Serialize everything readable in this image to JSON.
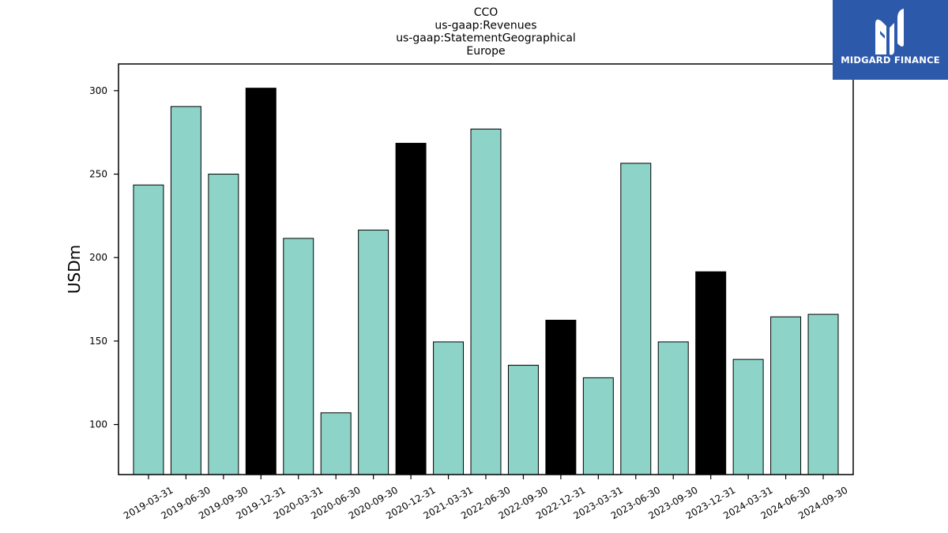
{
  "chart_data": {
    "type": "bar",
    "title_lines": [
      "CCO",
      "us-gaap:Revenues",
      "us-gaap:StatementGeographical",
      "Europe"
    ],
    "ylabel": "USDm",
    "xlabel": "",
    "ylim": [
      70,
      316
    ],
    "yticks": [
      100,
      150,
      200,
      250,
      300
    ],
    "grid": false,
    "categories": [
      "2019-03-31",
      "2019-06-30",
      "2019-09-30",
      "2019-12-31",
      "2020-03-31",
      "2020-06-30",
      "2020-09-30",
      "2020-12-31",
      "2021-03-31",
      "2022-06-30",
      "2022-09-30",
      "2022-12-31",
      "2023-03-31",
      "2023-06-30",
      "2023-09-30",
      "2023-12-31",
      "2024-03-31",
      "2024-06-30",
      "2024-09-30"
    ],
    "values": [
      243.5,
      290.5,
      250.0,
      301.5,
      211.5,
      107.0,
      216.5,
      268.5,
      149.5,
      277.0,
      135.5,
      162.5,
      128.0,
      256.5,
      149.5,
      191.5,
      139.0,
      164.5,
      166.0
    ],
    "bar_colors": [
      "#8dd3c7",
      "#8dd3c7",
      "#8dd3c7",
      "#000000",
      "#8dd3c7",
      "#8dd3c7",
      "#8dd3c7",
      "#000000",
      "#8dd3c7",
      "#8dd3c7",
      "#8dd3c7",
      "#000000",
      "#8dd3c7",
      "#8dd3c7",
      "#8dd3c7",
      "#000000",
      "#8dd3c7",
      "#8dd3c7",
      "#8dd3c7"
    ],
    "bar_edge_color": "#000000"
  },
  "logo": {
    "name": "MIDGARD FINANCE",
    "background": "#2d59ab",
    "icon": "midgard-monogram-icon"
  }
}
